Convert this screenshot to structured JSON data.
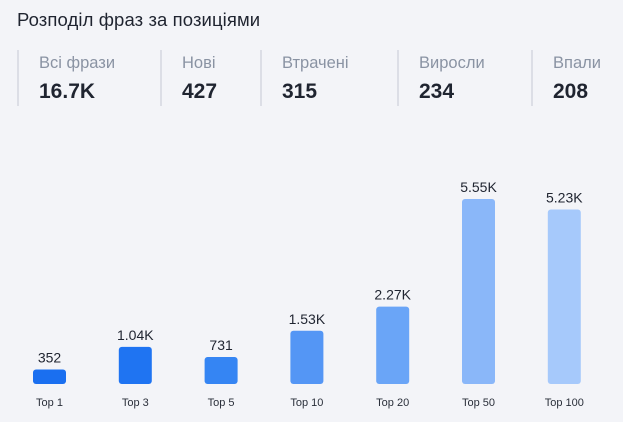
{
  "header": {
    "title": "Розподіл фраз за позиціями"
  },
  "stats": [
    {
      "label": "Всі фрази",
      "value": "16.7K"
    },
    {
      "label": "Нові",
      "value": "427"
    },
    {
      "label": "Втрачені",
      "value": "315"
    },
    {
      "label": "Виросли",
      "value": "234"
    },
    {
      "label": "Впали",
      "value": "208"
    }
  ],
  "chart_data": {
    "type": "bar",
    "title": "",
    "xlabel": "",
    "ylabel": "",
    "categories": [
      "Top 1",
      "Top 3",
      "Top 5",
      "Top 10",
      "Top 20",
      "Top 50",
      "Top 100"
    ],
    "values": [
      352,
      1040,
      731,
      1530,
      2270,
      5550,
      5230
    ],
    "value_labels": [
      "352",
      "1.04K",
      "731",
      "1.53K",
      "2.27K",
      "5.55K",
      "5.23K"
    ],
    "ylim": [
      0,
      5550
    ],
    "grid": false,
    "legend": "none",
    "colors": [
      "#1a6ff0",
      "#1f74f2",
      "#3585f3",
      "#5496f5",
      "#6aa5f7",
      "#8ab7f9",
      "#a6c9fb"
    ]
  }
}
